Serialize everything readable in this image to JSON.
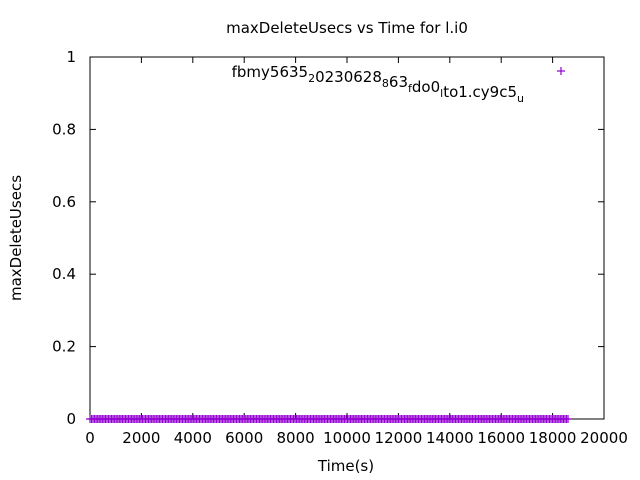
{
  "chart_data": {
    "type": "scatter",
    "title": "maxDeleteUsecs vs Time for l.i0",
    "xlabel": "Time(s)",
    "ylabel": "maxDeleteUsecs",
    "xlim": [
      0,
      20000
    ],
    "ylim": [
      0,
      1
    ],
    "x_ticks": [
      0,
      2000,
      4000,
      6000,
      8000,
      10000,
      12000,
      14000,
      16000,
      18000,
      20000
    ],
    "y_ticks": [
      0,
      0.2,
      0.4,
      0.6,
      0.8,
      1
    ],
    "grid": false,
    "legend_position": "top-right",
    "legend": {
      "parts": [
        {
          "text": "fbmy5635",
          "sub": "2"
        },
        {
          "text": "0230628",
          "sub": "8"
        },
        {
          "text": "63",
          "sub": "f"
        },
        {
          "text": "do0",
          "sub": "l"
        },
        {
          "text": "to1.cy9c5",
          "sub": "u"
        }
      ]
    },
    "series": [
      {
        "name": "fbmy5635_20230628_863_fdo0_lto1.cy9c5_u",
        "color": "#9400d3",
        "marker": "+",
        "x_start": 0,
        "x_end": 18600,
        "x_step": 60,
        "y_value": 0
      }
    ]
  }
}
